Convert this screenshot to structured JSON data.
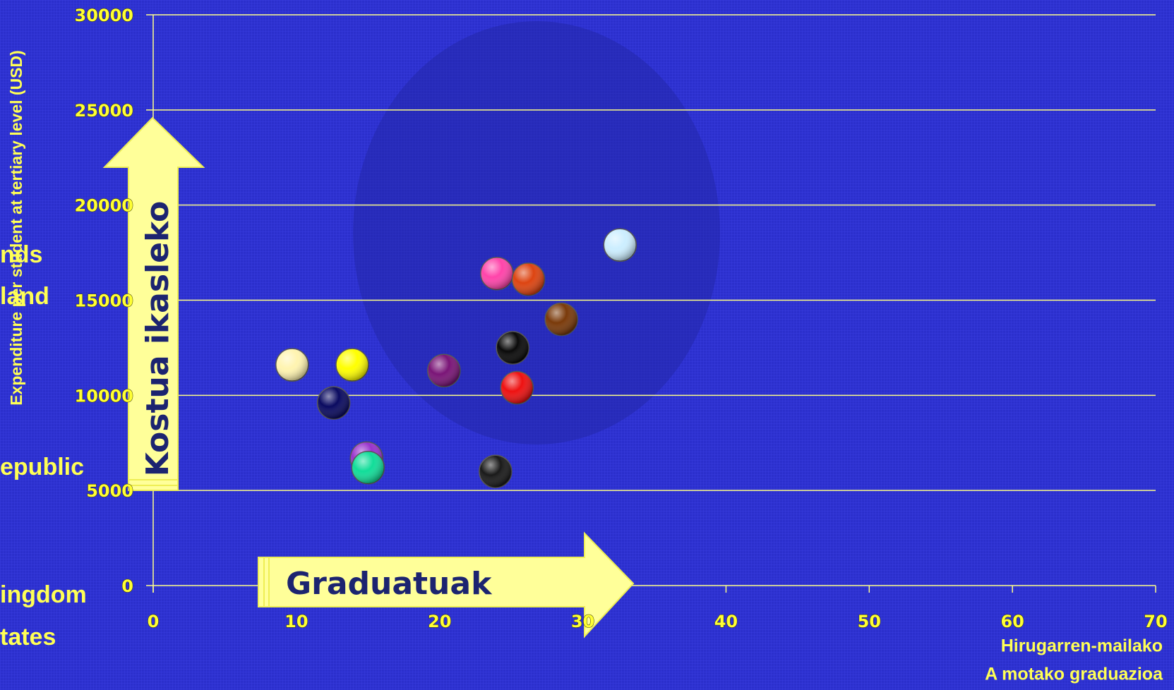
{
  "chart_data": {
    "type": "scatter",
    "y_label": "Expenditure per student at tertiary level (USD)",
    "x_label_lines": [
      "Hirugarren-mailako",
      "A motako graduazioa"
    ],
    "arrow_labels": [
      "Kostua ikasleko",
      "Graduatuak"
    ],
    "side_labels": [
      "nds",
      "land",
      "epublic",
      "ingdom",
      "tates"
    ],
    "x": [
      9.7,
      13.9,
      12.6,
      14.9,
      15.0,
      20.3,
      24.0,
      26.2,
      28.5,
      25.1,
      25.4,
      23.9,
      32.6
    ],
    "values": [
      11600,
      11600,
      9600,
      6700,
      6200,
      11300,
      16400,
      16100,
      14000,
      12500,
      10400,
      6000,
      17900
    ],
    "colors": [
      "#fff4b0",
      "#ffff00",
      "#0a0a60",
      "#9933cc",
      "#11dd99",
      "#7a1577",
      "#ff44aa",
      "#dd4411",
      "#7a3a0a",
      "#0a0a0a",
      "#ee1111",
      "#1a1a1a",
      "#cceeff"
    ],
    "xlim": [
      0,
      70
    ],
    "xticks": [
      0,
      10,
      20,
      30,
      40,
      50,
      60,
      70
    ],
    "ylim": [
      0,
      30000
    ],
    "yticks": [
      0,
      5000,
      10000,
      15000,
      20000,
      25000,
      30000
    ],
    "grid": true
  }
}
